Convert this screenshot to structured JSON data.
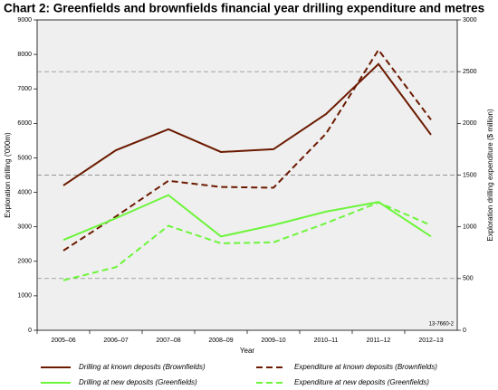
{
  "chart_data": {
    "type": "line",
    "title": "Chart 2: Greenfields and brownfields financial year drilling expenditure and metres",
    "x_label": "Year",
    "y_label": "Exploration drilling ('000m)",
    "y2_label": "Exploration drilling expenditure ($ million)",
    "note": "13-7660-2",
    "categories": [
      "2005–06",
      "2006–07",
      "2007–08",
      "2008–09",
      "2009–10",
      "2010–11",
      "2011–12",
      "2012–13"
    ],
    "ylim": [
      0,
      9000
    ],
    "yticks": [
      0,
      1000,
      2000,
      3000,
      4000,
      5000,
      6000,
      7000,
      8000,
      9000
    ],
    "y2lim": [
      0,
      3000
    ],
    "y2ticks": [
      0,
      500,
      1000,
      1500,
      2000,
      2500,
      3000
    ],
    "y2grid": [
      500,
      1500,
      2500
    ],
    "series": [
      {
        "name": "Drilling at known deposits (Brownfields)",
        "color": "#6b1a00",
        "style": "solid",
        "values": [
          4200,
          5220,
          5830,
          5170,
          5250,
          6270,
          7720,
          5670
        ]
      },
      {
        "name": "Expenditure at known deposits (Brownfields)",
        "color": "#6b1a00",
        "style": "dashed",
        "axis": "y2",
        "values": [
          770,
          1100,
          1445,
          1385,
          1378,
          1900,
          2710,
          2035
        ]
      },
      {
        "name": "Drilling at new deposits (Greenfields)",
        "color": "#6cf53a",
        "style": "solid",
        "values": [
          2620,
          3250,
          3920,
          2720,
          3050,
          3440,
          3720,
          2720
        ]
      },
      {
        "name": "Expenditure at new deposits (Greenfields)",
        "color": "#6cf53a",
        "style": "dashed",
        "axis": "y2",
        "values": [
          483,
          610,
          1010,
          840,
          850,
          1035,
          1235,
          1015
        ]
      }
    ]
  }
}
